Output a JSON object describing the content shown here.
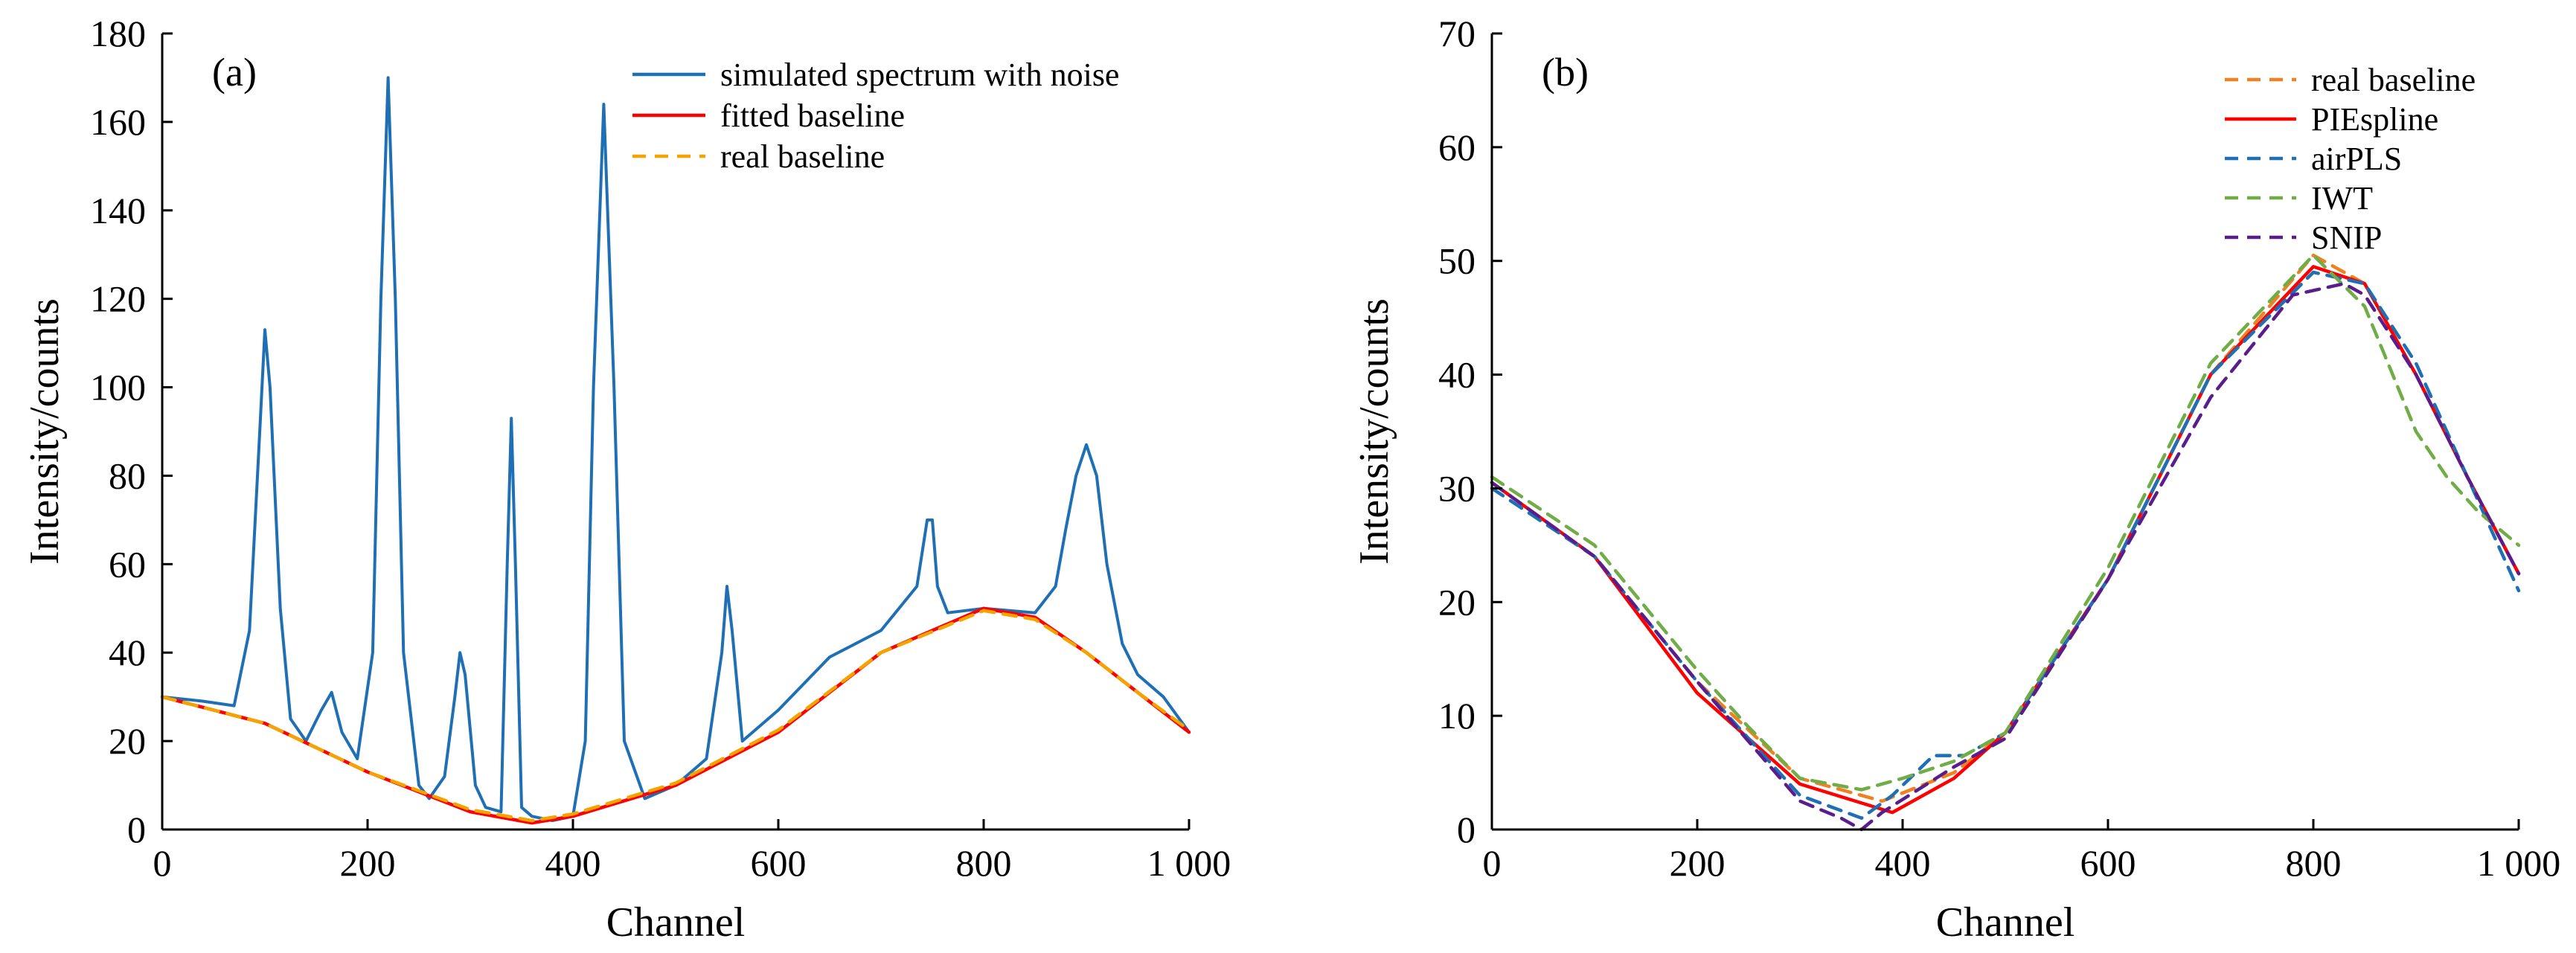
{
  "chart_data": [
    {
      "type": "line",
      "panel_label": "(a)",
      "xlabel": "Channel",
      "ylabel": "Intensity/counts",
      "xlim": [
        0,
        1000
      ],
      "ylim": [
        0,
        180
      ],
      "xticks": [
        0,
        200,
        400,
        600,
        800,
        1000
      ],
      "xtick_labels": [
        "0",
        "200",
        "400",
        "600",
        "800",
        "1 000"
      ],
      "yticks": [
        0,
        20,
        40,
        60,
        80,
        100,
        120,
        140,
        160,
        180
      ],
      "ytick_labels": [
        "0",
        "20",
        "40",
        "60",
        "80",
        "100",
        "120",
        "140",
        "160",
        "180"
      ],
      "legend_position": "top-right",
      "series": [
        {
          "name": "simulated spectrum with noise",
          "color": "#1f6fb5",
          "style": "solid",
          "x": [
            0,
            40,
            70,
            85,
            95,
            100,
            105,
            115,
            125,
            140,
            155,
            165,
            175,
            190,
            205,
            213,
            220,
            227,
            235,
            250,
            260,
            275,
            285,
            290,
            295,
            305,
            315,
            330,
            336,
            340,
            344,
            350,
            360,
            380,
            400,
            412,
            420,
            430,
            440,
            450,
            470,
            500,
            530,
            545,
            550,
            555,
            565,
            600,
            650,
            700,
            735,
            745,
            750,
            755,
            765,
            800,
            850,
            870,
            880,
            890,
            900,
            910,
            920,
            935,
            950,
            975,
            1000
          ],
          "y": [
            30,
            29,
            28,
            45,
            90,
            113,
            100,
            50,
            25,
            20,
            27,
            31,
            22,
            16,
            40,
            120,
            170,
            120,
            40,
            10,
            7,
            12,
            30,
            40,
            35,
            10,
            5,
            4,
            60,
            93,
            60,
            5,
            3,
            2,
            3,
            20,
            100,
            164,
            100,
            20,
            7,
            10,
            16,
            40,
            55,
            45,
            20,
            27,
            39,
            45,
            55,
            70,
            70,
            55,
            49,
            50,
            49,
            55,
            68,
            80,
            87,
            80,
            60,
            42,
            35,
            30,
            22
          ]
        },
        {
          "name": "fitted baseline",
          "color": "#ff0000",
          "style": "solid",
          "x": [
            0,
            100,
            200,
            300,
            360,
            400,
            500,
            600,
            700,
            800,
            850,
            900,
            950,
            1000
          ],
          "y": [
            30,
            24,
            13,
            4,
            1.5,
            3,
            10,
            22,
            40,
            50,
            48,
            40,
            31,
            22
          ]
        },
        {
          "name": "real baseline",
          "color": "#f5a300",
          "style": "dashed",
          "x": [
            0,
            100,
            200,
            300,
            360,
            400,
            500,
            600,
            700,
            800,
            850,
            900,
            950,
            1000
          ],
          "y": [
            30,
            24,
            13,
            4.5,
            2,
            3.5,
            10.5,
            22.5,
            40,
            49.5,
            47.5,
            40,
            31,
            22.5
          ]
        }
      ]
    },
    {
      "type": "line",
      "panel_label": "(b)",
      "xlabel": "Channel",
      "ylabel": "Intensity/counts",
      "xlim": [
        0,
        1000
      ],
      "ylim": [
        0,
        70
      ],
      "xticks": [
        0,
        200,
        400,
        600,
        800,
        1000
      ],
      "xtick_labels": [
        "0",
        "200",
        "400",
        "600",
        "800",
        "1 000"
      ],
      "yticks": [
        0,
        10,
        20,
        30,
        40,
        50,
        60,
        70
      ],
      "ytick_labels": [
        "0",
        "10",
        "20",
        "30",
        "40",
        "50",
        "60",
        "70"
      ],
      "legend_position": "top-right",
      "series": [
        {
          "name": "real baseline",
          "color": "#f08020",
          "style": "dashed",
          "x": [
            0,
            100,
            200,
            300,
            380,
            450,
            500,
            600,
            700,
            800,
            850,
            900,
            950,
            1000
          ],
          "y": [
            30.5,
            24,
            13,
            4.5,
            2.5,
            5,
            8.5,
            22,
            40,
            50.5,
            48,
            40,
            31,
            22.5
          ]
        },
        {
          "name": "PIEspline",
          "color": "#ff0000",
          "style": "solid",
          "x": [
            0,
            100,
            200,
            300,
            390,
            450,
            500,
            600,
            700,
            800,
            850,
            900,
            950,
            1000
          ],
          "y": [
            30.5,
            24,
            12,
            4,
            1.5,
            4.5,
            8.5,
            22,
            40,
            49.5,
            48,
            40,
            31,
            22.5
          ]
        },
        {
          "name": "airPLS",
          "color": "#1f6fb5",
          "style": "dashed",
          "x": [
            0,
            100,
            200,
            300,
            360,
            390,
            430,
            460,
            500,
            600,
            700,
            800,
            850,
            900,
            950,
            1000
          ],
          "y": [
            30,
            24,
            13,
            3,
            1,
            3,
            6.5,
            6.5,
            8.5,
            22,
            40,
            49,
            48,
            41,
            31,
            21
          ]
        },
        {
          "name": "IWT",
          "color": "#70ad47",
          "style": "dashed",
          "x": [
            0,
            100,
            200,
            250,
            300,
            360,
            400,
            450,
            500,
            600,
            700,
            800,
            850,
            900,
            930,
            960,
            1000
          ],
          "y": [
            31,
            25,
            14,
            9,
            4.5,
            3.5,
            4.5,
            6,
            8.5,
            23,
            41,
            50.5,
            46,
            35,
            31,
            28,
            25
          ]
        },
        {
          "name": "SNIP",
          "color": "#5a1d8c",
          "style": "dashed",
          "x": [
            0,
            100,
            200,
            300,
            340,
            360,
            380,
            450,
            500,
            600,
            700,
            780,
            830,
            850,
            900,
            950,
            1000
          ],
          "y": [
            30.5,
            24,
            13,
            2.5,
            1,
            0,
            1.5,
            5.5,
            8,
            22,
            38,
            47,
            48,
            47,
            40,
            31,
            22.5
          ]
        }
      ]
    }
  ]
}
